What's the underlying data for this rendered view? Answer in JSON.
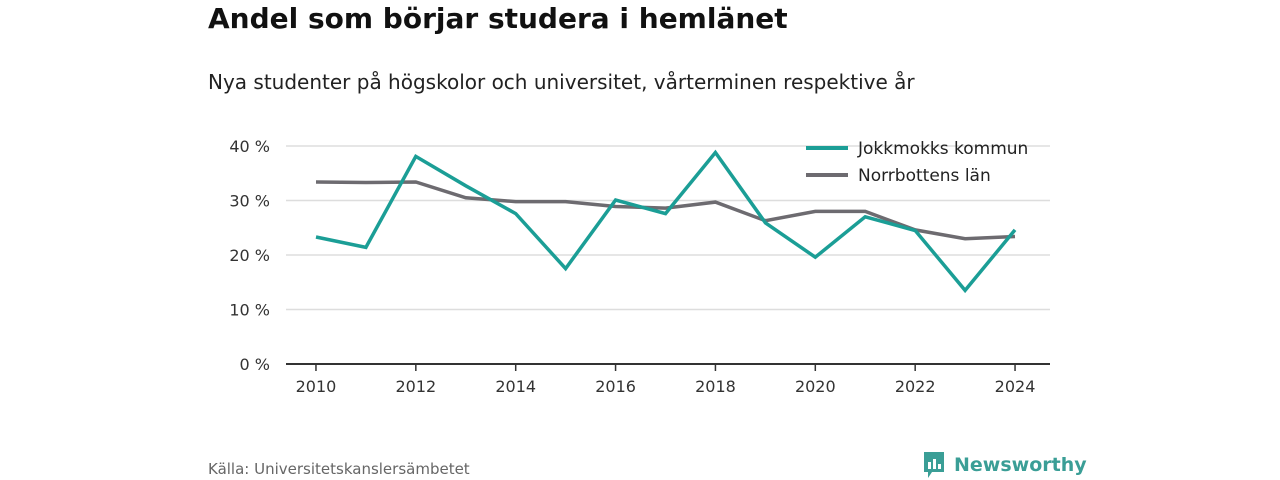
{
  "title": "Andel som börjar studera i hemlänet",
  "subtitle": "Nya studenter på högskolor och universitet, vårterminen respektive år",
  "source": "Källa: Universitetskanslersämbetet",
  "brand": {
    "name": "Newsworthy",
    "icon": "newsworthy-logo-icon",
    "color": "#3a9e96"
  },
  "chart_data": {
    "type": "line",
    "x": [
      2010,
      2011,
      2012,
      2013,
      2014,
      2015,
      2016,
      2017,
      2018,
      2019,
      2020,
      2021,
      2022,
      2023,
      2024
    ],
    "xticks": [
      2010,
      2012,
      2014,
      2016,
      2018,
      2020,
      2022,
      2024
    ],
    "xtick_labels": [
      "2010",
      "2012",
      "2014",
      "2016",
      "2018",
      "2020",
      "2022",
      "2024"
    ],
    "xlim": [
      2009.4,
      2024.7
    ],
    "ylim": [
      0,
      40
    ],
    "yticks": [
      0,
      10,
      20,
      30,
      40
    ],
    "ytick_labels": [
      "0 %",
      "10 %",
      "20 %",
      "30 %",
      "40 %"
    ],
    "grid": true,
    "legend": "top-right",
    "series": [
      {
        "name": "Jokkmokks kommun",
        "color": "#1b9e96",
        "values": [
          23.3,
          21.4,
          38.1,
          32.7,
          27.6,
          17.5,
          30.1,
          27.6,
          38.8,
          25.9,
          19.6,
          27.0,
          24.5,
          13.5,
          24.6
        ]
      },
      {
        "name": "Norrbottens län",
        "color": "#6d6b70",
        "values": [
          33.4,
          33.3,
          33.4,
          30.5,
          29.8,
          29.8,
          28.9,
          28.6,
          29.7,
          26.3,
          28.0,
          28.0,
          24.6,
          23.0,
          23.4
        ]
      }
    ]
  }
}
